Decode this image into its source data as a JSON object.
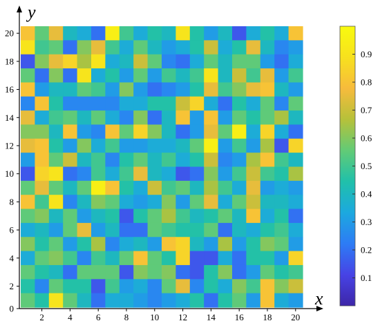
{
  "chart_data": {
    "type": "heatmap",
    "title": "",
    "xlabel": "x",
    "ylabel": "y",
    "x_ticks": [
      "2",
      "4",
      "6",
      "8",
      "10",
      "12",
      "14",
      "16",
      "18",
      "20"
    ],
    "y_ticks": [
      "0",
      "2",
      "4",
      "6",
      "8",
      "10",
      "12",
      "14",
      "16",
      "18",
      "20"
    ],
    "grid_size": 20,
    "value_range": [
      0.0,
      1.0
    ],
    "colorbar": {
      "ticks": [
        "0.1",
        "0.2",
        "0.3",
        "0.4",
        "0.5",
        "0.6",
        "0.7",
        "0.8",
        "0.9"
      ],
      "range": [
        0.0,
        1.0
      ],
      "colormap": [
        "#3d26a8",
        "#4743e5",
        "#2d7cf5",
        "#1ca9df",
        "#20c0aa",
        "#62cb76",
        "#b6c13a",
        "#f7bb3c",
        "#f7e11e",
        "#f9fb0e"
      ]
    },
    "values": [
      [
        0.8,
        0.55,
        0.75,
        0.4,
        0.35,
        0.2,
        0.95,
        0.5,
        0.35,
        0.45,
        0.4,
        0.9,
        0.45,
        0.3,
        0.4,
        0.15,
        0.35,
        0.45,
        0.35,
        0.8
      ],
      [
        0.9,
        0.5,
        0.55,
        0.2,
        0.6,
        0.75,
        0.5,
        0.35,
        0.55,
        0.4,
        0.3,
        0.35,
        0.45,
        0.7,
        0.35,
        0.45,
        0.75,
        0.4,
        0.25,
        0.3
      ],
      [
        0.15,
        0.6,
        0.75,
        0.85,
        0.65,
        0.9,
        0.35,
        0.4,
        0.7,
        0.55,
        0.25,
        0.2,
        0.35,
        0.55,
        0.4,
        0.55,
        0.55,
        0.3,
        0.2,
        0.35
      ],
      [
        0.55,
        0.2,
        0.6,
        0.2,
        0.9,
        0.35,
        0.45,
        0.3,
        0.55,
        0.3,
        0.5,
        0.4,
        0.5,
        0.9,
        0.4,
        0.7,
        0.5,
        0.75,
        0.3,
        0.5
      ],
      [
        0.8,
        0.3,
        0.4,
        0.4,
        0.55,
        0.5,
        0.3,
        0.6,
        0.3,
        0.2,
        0.25,
        0.3,
        0.45,
        0.75,
        0.5,
        0.6,
        0.75,
        0.8,
        0.4,
        0.3
      ],
      [
        0.25,
        0.8,
        0.45,
        0.25,
        0.25,
        0.25,
        0.25,
        0.35,
        0.35,
        0.45,
        0.45,
        0.7,
        0.85,
        0.35,
        0.2,
        0.45,
        0.35,
        0.55,
        0.25,
        0.55
      ],
      [
        0.75,
        0.35,
        0.5,
        0.55,
        0.4,
        0.55,
        0.35,
        0.25,
        0.6,
        0.2,
        0.4,
        0.8,
        0.3,
        0.8,
        0.3,
        0.55,
        0.45,
        0.55,
        0.65,
        0.4
      ],
      [
        0.6,
        0.6,
        0.4,
        0.8,
        0.3,
        0.25,
        0.8,
        0.55,
        0.85,
        0.6,
        0.4,
        0.2,
        0.3,
        0.75,
        0.55,
        0.95,
        0.35,
        0.85,
        0.35,
        0.2
      ],
      [
        0.75,
        0.8,
        0.45,
        0.3,
        0.6,
        0.35,
        0.5,
        0.3,
        0.3,
        0.35,
        0.35,
        0.4,
        0.55,
        0.95,
        0.3,
        0.5,
        0.3,
        0.65,
        0.15,
        0.85
      ],
      [
        0.3,
        0.8,
        0.55,
        0.7,
        0.4,
        0.5,
        0.25,
        0.45,
        0.55,
        0.4,
        0.5,
        0.35,
        0.45,
        0.7,
        0.25,
        0.3,
        0.65,
        0.8,
        0.5,
        0.4
      ],
      [
        0.15,
        0.85,
        0.9,
        0.2,
        0.25,
        0.5,
        0.35,
        0.5,
        0.75,
        0.4,
        0.35,
        0.15,
        0.2,
        0.6,
        0.3,
        0.5,
        0.7,
        0.5,
        0.45,
        0.65
      ],
      [
        0.55,
        0.75,
        0.55,
        0.4,
        0.55,
        0.95,
        0.8,
        0.45,
        0.35,
        0.7,
        0.5,
        0.55,
        0.4,
        0.65,
        0.5,
        0.35,
        0.75,
        0.3,
        0.35,
        0.3
      ],
      [
        0.8,
        0.5,
        0.9,
        0.25,
        0.4,
        0.6,
        0.55,
        0.35,
        0.3,
        0.35,
        0.6,
        0.3,
        0.55,
        0.75,
        0.35,
        0.55,
        0.7,
        0.4,
        0.4,
        0.35
      ],
      [
        0.55,
        0.6,
        0.4,
        0.55,
        0.3,
        0.4,
        0.45,
        0.15,
        0.45,
        0.55,
        0.65,
        0.5,
        0.4,
        0.45,
        0.55,
        0.4,
        0.8,
        0.35,
        0.45,
        0.2
      ],
      [
        0.35,
        0.4,
        0.3,
        0.55,
        0.75,
        0.3,
        0.4,
        0.2,
        0.2,
        0.55,
        0.5,
        0.45,
        0.45,
        0.55,
        0.2,
        0.4,
        0.35,
        0.45,
        0.5,
        0.35
      ],
      [
        0.6,
        0.45,
        0.55,
        0.3,
        0.45,
        0.65,
        0.25,
        0.35,
        0.4,
        0.3,
        0.8,
        0.85,
        0.4,
        0.3,
        0.65,
        0.3,
        0.45,
        0.6,
        0.55,
        0.3
      ],
      [
        0.35,
        0.55,
        0.6,
        0.5,
        0.25,
        0.5,
        0.4,
        0.55,
        0.8,
        0.55,
        0.45,
        0.85,
        0.15,
        0.15,
        0.35,
        0.2,
        0.45,
        0.45,
        0.3,
        0.85
      ],
      [
        0.55,
        0.45,
        0.4,
        0.2,
        0.55,
        0.55,
        0.55,
        0.15,
        0.6,
        0.55,
        0.6,
        0.2,
        0.15,
        0.45,
        0.6,
        0.2,
        0.3,
        0.55,
        0.45,
        0.5
      ],
      [
        0.45,
        0.25,
        0.55,
        0.45,
        0.45,
        0.15,
        0.5,
        0.3,
        0.35,
        0.25,
        0.55,
        0.75,
        0.25,
        0.45,
        0.35,
        0.6,
        0.5,
        0.8,
        0.6,
        0.7
      ],
      [
        0.55,
        0.45,
        0.9,
        0.55,
        0.4,
        0.2,
        0.35,
        0.35,
        0.3,
        0.25,
        0.3,
        0.35,
        0.45,
        0.2,
        0.45,
        0.55,
        0.3,
        0.8,
        0.35,
        0.3
      ]
    ]
  }
}
